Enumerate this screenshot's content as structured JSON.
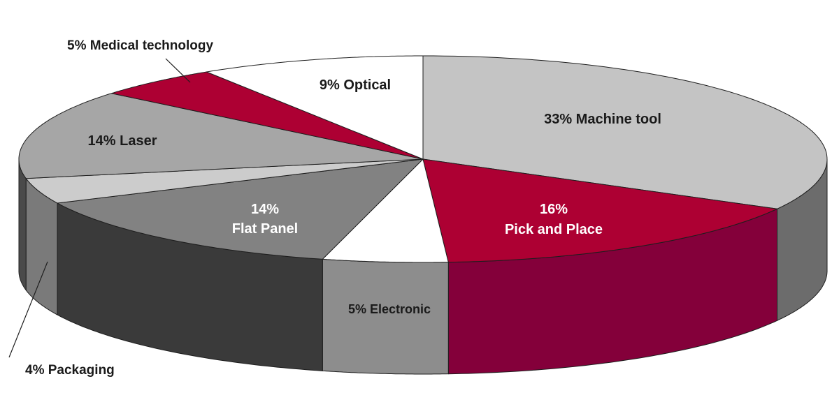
{
  "chart_data": {
    "type": "pie",
    "style": "3d",
    "legend": "none",
    "slices": [
      {
        "label": "Machine tool",
        "value": 33,
        "display": "33% Machine tool",
        "top_color": "#c4c4c4",
        "side_color": "#6c6c6c",
        "text_color": "#1a1a1a"
      },
      {
        "label": "Pick and Place",
        "value": 16,
        "display_pct": "16%",
        "display_name": "Pick and Place",
        "top_color": "#ad0033",
        "side_color": "#84003a",
        "text_color": "#ffffff"
      },
      {
        "label": "Electronic",
        "value": 5,
        "display": "5% Electronic",
        "top_color": "#ffffff",
        "side_color": "#8d8d8d",
        "text_color": "#1a1a1a"
      },
      {
        "label": "Flat Panel",
        "value": 14,
        "display_pct": "14%",
        "display_name": "Flat Panel",
        "top_color": "#828282",
        "side_color": "#3a3a3a",
        "text_color": "#ffffff"
      },
      {
        "label": "Packaging",
        "value": 4,
        "display": "4% Packaging",
        "top_color": "#cccccc",
        "side_color": "#7a7a7a",
        "text_color": "#1a1a1a"
      },
      {
        "label": "Laser",
        "value": 14,
        "display": "14% Laser",
        "top_color": "#a6a6a6",
        "side_color": "#4a4a4a",
        "text_color": "#1a1a1a"
      },
      {
        "label": "Medical technology",
        "value": 5,
        "display": "5% Medical technology",
        "top_color": "#ad0033",
        "side_color": "#84003a",
        "text_color": "#1a1a1a"
      },
      {
        "label": "Optical",
        "value": 9,
        "display": "9% Optical",
        "top_color": "#ffffff",
        "side_color": "#d0d0d0",
        "text_color": "#1a1a1a"
      }
    ]
  }
}
